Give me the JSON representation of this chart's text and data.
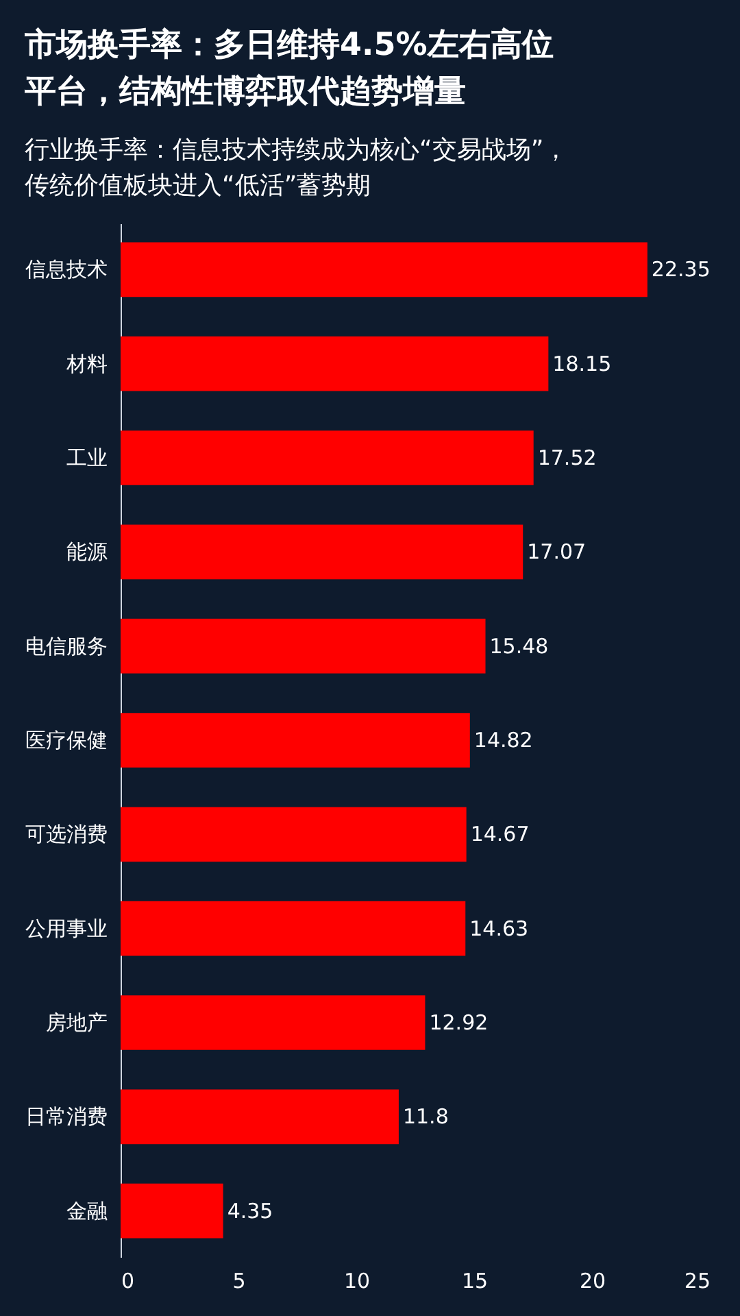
{
  "chart_data": {
    "type": "bar",
    "orientation": "horizontal",
    "title": "市场换手率：多日维持4.5%左右高位平台，结构性博弈取代趋势增量",
    "subtitle": "行业换手率：信息技术持续成为核心“交易战场”，传统价值板块进入“低活”蓄势期",
    "categories": [
      "信息技术",
      "材料",
      "工业",
      "能源",
      "电信服务",
      "医疗保健",
      "可选消费",
      "公用事业",
      "房地产",
      "日常消费",
      "金融"
    ],
    "values": [
      22.35,
      18.15,
      17.52,
      17.07,
      15.48,
      14.82,
      14.67,
      14.63,
      12.92,
      11.8,
      4.35
    ],
    "color": "#ff0000",
    "data_labels": true,
    "xlim": [
      0,
      25
    ],
    "xticks": [
      0,
      5,
      10,
      15,
      20,
      25
    ],
    "grid": false
  }
}
